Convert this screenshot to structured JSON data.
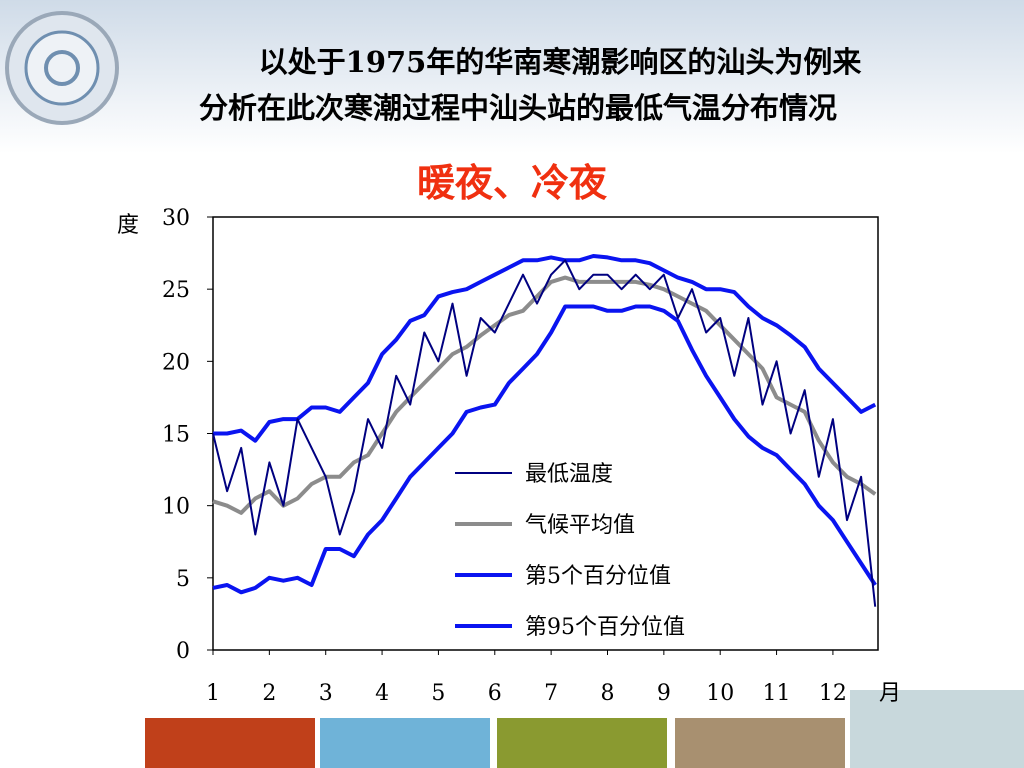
{
  "chart_data": {
    "type": "line",
    "title": "以处于1975年的华南寒潮影响区的汕头为例来",
    "title_line2": "分析在此次寒潮过程中汕头站的最低气温分布情况",
    "subtitle": "暖夜、冷夜",
    "y_label": "度",
    "x_label": "月",
    "x": [
      1,
      1.25,
      1.5,
      1.75,
      2,
      2.25,
      2.5,
      2.75,
      3,
      3.25,
      3.5,
      3.75,
      4,
      4.25,
      4.5,
      4.75,
      5,
      5.25,
      5.5,
      5.75,
      6,
      6.25,
      6.5,
      6.75,
      7,
      7.25,
      7.5,
      7.75,
      8,
      8.25,
      8.5,
      8.75,
      9,
      9.25,
      9.5,
      9.75,
      10,
      10.25,
      10.5,
      10.75,
      11,
      11.25,
      11.5,
      11.75,
      12,
      12.25,
      12.5,
      12.75
    ],
    "xlim": [
      1,
      12.8
    ],
    "xticks": [
      1,
      2,
      3,
      4,
      5,
      6,
      7,
      8,
      9,
      10,
      11,
      12
    ],
    "ylim": [
      0,
      30
    ],
    "yticks": [
      0,
      5,
      10,
      15,
      20,
      25,
      30
    ],
    "series": [
      {
        "name": "最低温度",
        "color": "#000080",
        "values": [
          15,
          11,
          14,
          8,
          13,
          10,
          16,
          14,
          12,
          8,
          11,
          16,
          14,
          19,
          17,
          22,
          20,
          24,
          19,
          23,
          22,
          24,
          26,
          24,
          26,
          27,
          25,
          26,
          26,
          25,
          26,
          25,
          26,
          23,
          25,
          22,
          23,
          19,
          23,
          17,
          20,
          15,
          18,
          12,
          16,
          9,
          12,
          3
        ]
      },
      {
        "name": "气候平均值",
        "color": "#8c8c8c",
        "values": [
          10.3,
          10,
          9.5,
          10.5,
          11,
          10,
          10.5,
          11.5,
          12,
          12,
          13,
          13.5,
          15,
          16.5,
          17.5,
          18.5,
          19.5,
          20.5,
          21,
          21.8,
          22.5,
          23.2,
          23.5,
          24.5,
          25.5,
          25.8,
          25.5,
          25.5,
          25.5,
          25.5,
          25.5,
          25.3,
          25,
          24.5,
          24,
          23.5,
          22.5,
          21.5,
          20.5,
          19.5,
          17.5,
          17,
          16.5,
          14.5,
          13,
          12,
          11.5,
          10.8
        ]
      },
      {
        "name": "第5个百分位值",
        "color": "#0a14f0",
        "values": [
          4.3,
          4.5,
          4,
          4.3,
          5,
          4.8,
          5,
          4.5,
          7,
          7,
          6.5,
          8,
          9,
          10.5,
          12,
          13,
          14,
          15,
          16.5,
          16.8,
          17,
          18.5,
          19.5,
          20.5,
          22,
          23.8,
          23.8,
          23.8,
          23.5,
          23.5,
          23.8,
          23.8,
          23.5,
          22.8,
          20.8,
          19,
          17.5,
          16,
          14.8,
          14,
          13.5,
          12.5,
          11.5,
          10,
          9,
          7.5,
          6,
          4.5
        ]
      },
      {
        "name": "第95个百分位值",
        "color": "#0a14f0",
        "values": [
          15,
          15,
          15.2,
          14.5,
          15.8,
          16,
          16,
          16.8,
          16.8,
          16.5,
          17.5,
          18.5,
          20.5,
          21.5,
          22.8,
          23.2,
          24.5,
          24.8,
          25,
          25.5,
          26,
          26.5,
          27,
          27,
          27.2,
          27,
          27,
          27.3,
          27.2,
          27,
          27,
          26.8,
          26.3,
          25.8,
          25.5,
          25,
          25,
          24.8,
          23.8,
          23,
          22.5,
          21.8,
          21,
          19.5,
          18.5,
          17.5,
          16.5,
          17
        ]
      }
    ]
  }
}
